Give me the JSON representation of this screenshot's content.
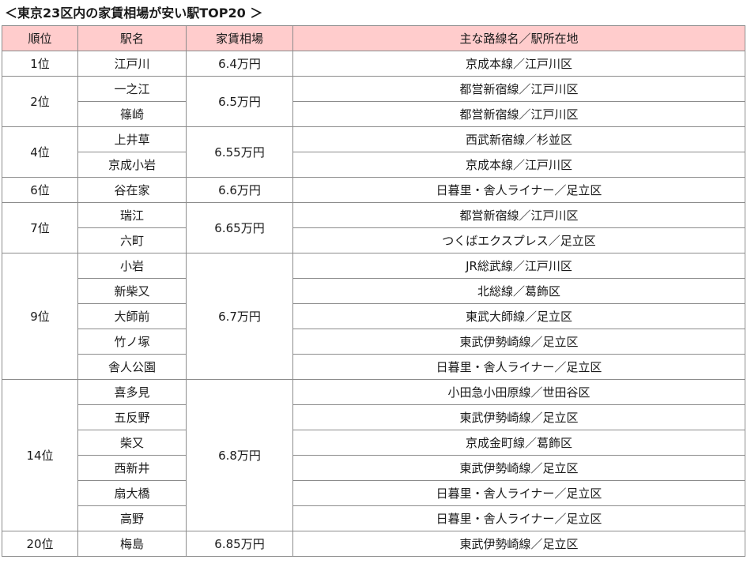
{
  "title": "＜東京23区内の家賃相場が安い駅TOP20 ＞",
  "headers": [
    "順位",
    "駅名",
    "家賃相場",
    "主な路線名／駅所在地"
  ],
  "groups": [
    {
      "rank": "1位",
      "rent": "6.4万円",
      "stations": [
        {
          "name": "江戸川",
          "line": "京成本線／江戸川区"
        }
      ]
    },
    {
      "rank": "2位",
      "rent": "6.5万円",
      "stations": [
        {
          "name": "一之江",
          "line": "都営新宿線／江戸川区"
        },
        {
          "name": "篠崎",
          "line": "都営新宿線／江戸川区"
        }
      ]
    },
    {
      "rank": "4位",
      "rent": "6.55万円",
      "stations": [
        {
          "name": "上井草",
          "line": "西武新宿線／杉並区"
        },
        {
          "name": "京成小岩",
          "line": "京成本線／江戸川区"
        }
      ]
    },
    {
      "rank": "6位",
      "rent": "6.6万円",
      "stations": [
        {
          "name": "谷在家",
          "line": "日暮里・舎人ライナー／足立区"
        }
      ]
    },
    {
      "rank": "7位",
      "rent": "6.65万円",
      "stations": [
        {
          "name": "瑞江",
          "line": "都営新宿線／江戸川区"
        },
        {
          "name": "六町",
          "line": "つくばエクスプレス／足立区"
        }
      ]
    },
    {
      "rank": "9位",
      "rent": "6.7万円",
      "stations": [
        {
          "name": "小岩",
          "line": "JR総武線／江戸川区"
        },
        {
          "name": "新柴又",
          "line": "北総線／葛飾区"
        },
        {
          "name": "大師前",
          "line": "東武大師線／足立区"
        },
        {
          "name": "竹ノ塚",
          "line": "東武伊勢崎線／足立区"
        },
        {
          "name": "舎人公園",
          "line": "日暮里・舎人ライナー／足立区"
        }
      ]
    },
    {
      "rank": "14位",
      "rent": "6.8万円",
      "stations": [
        {
          "name": "喜多見",
          "line": "小田急小田原線／世田谷区"
        },
        {
          "name": "五反野",
          "line": "東武伊勢崎線／足立区"
        },
        {
          "name": "柴又",
          "line": "京成金町線／葛飾区"
        },
        {
          "name": "西新井",
          "line": "東武伊勢崎線／足立区"
        },
        {
          "name": "扇大橋",
          "line": "日暮里・舎人ライナー／足立区"
        },
        {
          "name": "高野",
          "line": "日暮里・舎人ライナー／足立区"
        }
      ]
    },
    {
      "rank": "20位",
      "rent": "6.85万円",
      "stations": [
        {
          "name": "梅島",
          "line": "東武伊勢崎線／足立区"
        }
      ]
    }
  ]
}
